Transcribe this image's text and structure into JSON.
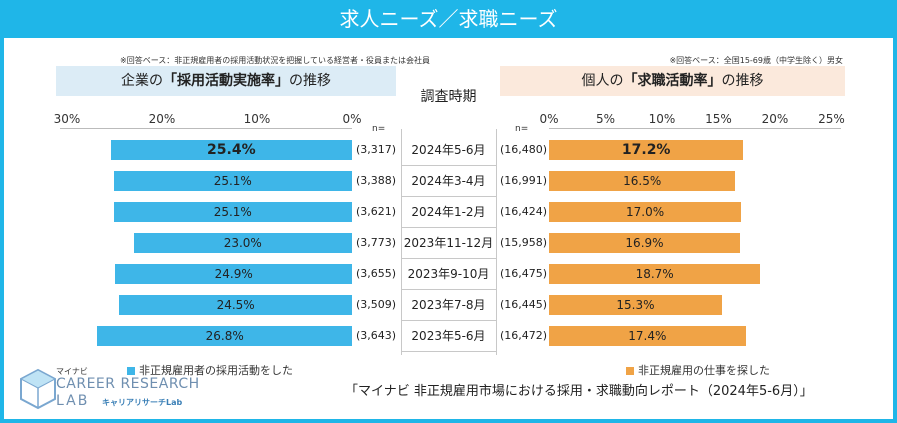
{
  "title": "求人ニーズ／求職ニーズ",
  "note_left": "※回答ベース：非正規雇用者の採用活動状況を把握している経営者・役員または会社員",
  "note_right": "※回答ベース：全国15-69歳（中学生除く）男女",
  "header_left_pre": "企業の",
  "header_left_em": "「採用活動実施率」",
  "header_left_post": "の推移",
  "header_mid": "調査時期",
  "header_right_pre": "個人の",
  "header_right_em": "「求職活動率」",
  "header_right_post": "の推移",
  "n_label": "n=",
  "legend_left": "非正規雇用者の採用活動をした",
  "legend_right": "非正規雇用の仕事を探した",
  "report_title": "「マイナビ 非正規雇用市場における採用・求職動向レポート（2024年5-6月）」",
  "logo": {
    "small": "マイナビ",
    "line1": "CAREER RESEARCH",
    "line2": "LAB",
    "sub": "キャリアリサーチLab"
  },
  "colors": {
    "accent": "#1fb6e8",
    "left_bar": "#3eb6e8",
    "right_bar": "#f0a346"
  },
  "chart_data": {
    "type": "bar",
    "layout": "butterfly",
    "categories": [
      "2024年5-6月",
      "2024年3-4月",
      "2024年1-2月",
      "2023年11-12月",
      "2023年9-10月",
      "2023年7-8月",
      "2023年5-6月"
    ],
    "left": {
      "name": "非正規雇用者の採用活動をした",
      "values": [
        25.4,
        25.1,
        25.1,
        23.0,
        24.9,
        24.5,
        26.8
      ],
      "labels": [
        "25.4%",
        "25.1%",
        "25.1%",
        "23.0%",
        "24.9%",
        "24.5%",
        "26.8%"
      ],
      "n": [
        "(3,317)",
        "(3,388)",
        "(3,621)",
        "(3,773)",
        "(3,655)",
        "(3,509)",
        "(3,643)"
      ],
      "ticks": [
        "30%",
        "20%",
        "10%",
        "0%"
      ],
      "xlim": [
        0,
        30
      ]
    },
    "right": {
      "name": "非正規雇用の仕事を探した",
      "values": [
        17.2,
        16.5,
        17.0,
        16.9,
        18.7,
        15.3,
        17.4
      ],
      "labels": [
        "17.2%",
        "16.5%",
        "17.0%",
        "16.9%",
        "18.7%",
        "15.3%",
        "17.4%"
      ],
      "n": [
        "(16,480)",
        "(16,991)",
        "(16,424)",
        "(15,958)",
        "(16,475)",
        "(16,445)",
        "(16,472)"
      ],
      "ticks": [
        "0%",
        "5%",
        "10%",
        "15%",
        "20%",
        "25%"
      ],
      "xlim": [
        0,
        25
      ]
    }
  }
}
